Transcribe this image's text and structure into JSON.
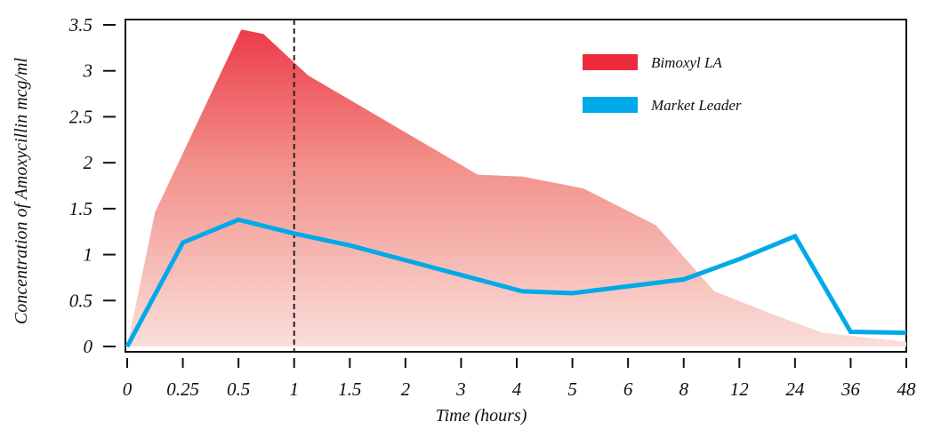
{
  "chart_data": {
    "type": "area",
    "xlabel": "Time (hours)",
    "ylabel": "Concentration of Amoxycillin mcg/ml",
    "categories": [
      "0",
      "0.25",
      "0.5",
      "1",
      "1.5",
      "2",
      "3",
      "4",
      "5",
      "6",
      "8",
      "12",
      "24",
      "36",
      "48"
    ],
    "ylim": [
      0,
      3.5
    ],
    "yticks": [
      "0",
      "0.5",
      "1",
      "1.5",
      "2",
      "2.5",
      "3",
      "3.5"
    ],
    "legend_position": "top-right",
    "grid": false,
    "reference_line": {
      "x": "1",
      "style": "dashed"
    },
    "series": [
      {
        "name": "Bimoxyl LA",
        "style": "gradient-area",
        "color": "#ed2b3a",
        "points": [
          [
            0,
            0
          ],
          [
            0.5,
            1.46
          ],
          [
            2.05,
            3.45
          ],
          [
            2.45,
            3.4
          ],
          [
            3.25,
            2.95
          ],
          [
            6.3,
            1.87
          ],
          [
            7.1,
            1.85
          ],
          [
            8.2,
            1.72
          ],
          [
            9.5,
            1.32
          ],
          [
            10.55,
            0.6
          ],
          [
            11.6,
            0.35
          ],
          [
            12.5,
            0.15
          ],
          [
            14,
            0.05
          ]
        ]
      },
      {
        "name": "Market Leader",
        "style": "line",
        "color": "#00a9e8",
        "points": [
          [
            0,
            0
          ],
          [
            1,
            1.13
          ],
          [
            2,
            1.38
          ],
          [
            3,
            1.23
          ],
          [
            4,
            1.1
          ],
          [
            7.1,
            0.6
          ],
          [
            8,
            0.58
          ],
          [
            10,
            0.73
          ],
          [
            11,
            0.95
          ],
          [
            12,
            1.2
          ],
          [
            13,
            0.16
          ],
          [
            14,
            0.15
          ]
        ]
      }
    ]
  }
}
